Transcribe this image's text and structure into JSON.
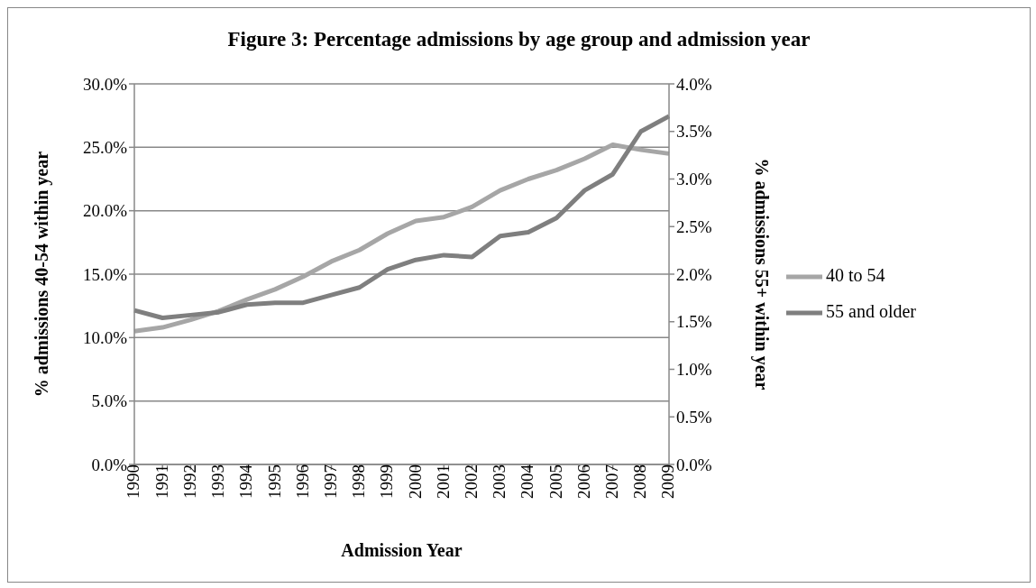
{
  "chart_data": {
    "type": "line",
    "title": "Figure 3: Percentage admissions by age group and admission year",
    "xlabel": "Admission Year",
    "ylabel": "% admissions 40-54 within year",
    "y2label": "% admissions 55+ within year",
    "categories": [
      "1990",
      "1991",
      "1992",
      "1993",
      "1994",
      "1995",
      "1996",
      "1997",
      "1998",
      "1999",
      "2000",
      "2001",
      "2002",
      "2003",
      "2004",
      "2005",
      "2006",
      "2007",
      "2008",
      "2009"
    ],
    "series": [
      {
        "name": "40 to 54",
        "color": "#a6a6a6",
        "values": [
          10.5,
          10.8,
          11.4,
          12.1,
          13.0,
          13.8,
          14.8,
          16.0,
          16.9,
          18.2,
          19.2,
          19.5,
          20.3,
          21.6,
          22.5,
          23.2,
          24.1,
          25.2,
          24.8,
          24.5
        ]
      },
      {
        "name": "55 and older",
        "color": "#7f7f7f",
        "axis": "y2",
        "values": [
          1.62,
          1.54,
          1.57,
          1.6,
          1.68,
          1.7,
          1.7,
          1.78,
          1.86,
          2.05,
          2.15,
          2.2,
          2.18,
          2.4,
          2.44,
          2.59,
          2.88,
          3.05,
          3.5,
          3.66
        ]
      }
    ],
    "ylim": [
      0,
      30
    ],
    "yticks": [
      {
        "value": 0,
        "label": "0.0%"
      },
      {
        "value": 5,
        "label": "5.0%"
      },
      {
        "value": 10,
        "label": "10.0%"
      },
      {
        "value": 15,
        "label": "15.0%"
      },
      {
        "value": 20,
        "label": "20.0%"
      },
      {
        "value": 25,
        "label": "25.0%"
      },
      {
        "value": 30,
        "label": "30.0%"
      }
    ],
    "y2lim": [
      0,
      4
    ],
    "y2ticks": [
      {
        "value": 0,
        "label": "0.0%"
      },
      {
        "value": 0.5,
        "label": "0.5%"
      },
      {
        "value": 1,
        "label": "1.0%"
      },
      {
        "value": 1.5,
        "label": "1.5%"
      },
      {
        "value": 2,
        "label": "2.0%"
      },
      {
        "value": 2.5,
        "label": "2.5%"
      },
      {
        "value": 3,
        "label": "3.0%"
      },
      {
        "value": 3.5,
        "label": "3.5%"
      },
      {
        "value": 4,
        "label": "4.0%"
      }
    ],
    "grid": "y",
    "legend": "right",
    "marker": "none",
    "line_style": "solid"
  }
}
